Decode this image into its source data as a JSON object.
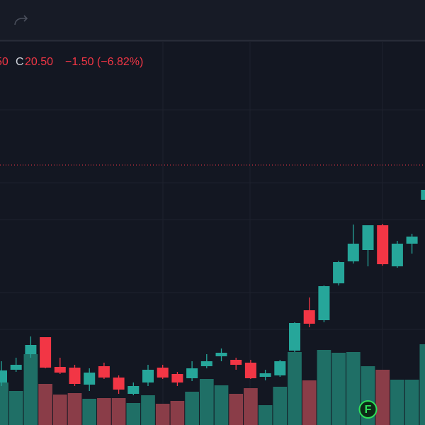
{
  "chart_data": {
    "type": "candlestick",
    "legend": {
      "partial": "50",
      "close_label": "C",
      "close": "20.50",
      "change": "−1.50 (−6.82%)"
    },
    "up_color": "#26a69a",
    "down_color": "#f23645",
    "volume_up_color": "#1f6f66",
    "volume_down_color": "#8a3d48",
    "price_line": 367,
    "price_line_color": "#f23645",
    "ylim": [
      0,
      600
    ],
    "volume_ylim": [
      0,
      600
    ],
    "open": [
      60,
      78,
      100,
      124,
      82,
      81,
      57,
      83,
      67,
      44,
      60,
      81,
      72,
      66,
      83,
      97,
      92,
      88,
      68,
      70,
      105,
      162,
      148,
      200,
      231,
      247,
      282,
      224,
      256,
      318
    ],
    "high": [
      90,
      95,
      125,
      124,
      95,
      85,
      80,
      88,
      70,
      60,
      85,
      85,
      75,
      90,
      100,
      108,
      95,
      92,
      78,
      92,
      145,
      180,
      197,
      232,
      283,
      282,
      284,
      260,
      270,
      335
    ],
    "low": [
      55,
      75,
      95,
      80,
      72,
      55,
      48,
      65,
      44,
      42,
      55,
      65,
      55,
      62,
      80,
      90,
      78,
      65,
      63,
      68,
      103,
      138,
      145,
      197,
      228,
      224,
      225,
      222,
      242,
      315
    ],
    "close": [
      77,
      85,
      113,
      81,
      74,
      58,
      74,
      67,
      50,
      55,
      78,
      67,
      60,
      80,
      90,
      102,
      85,
      66,
      73,
      90,
      144,
      143,
      196,
      230,
      256,
      282,
      227,
      256,
      266,
      332
    ],
    "volume": [
      60,
      48,
      100,
      58,
      43,
      45,
      37,
      38,
      38,
      31,
      42,
      30,
      34,
      47,
      65,
      56,
      44,
      52,
      28,
      54,
      103,
      63,
      106,
      102,
      103,
      83,
      78,
      64,
      64,
      114
    ],
    "marker": {
      "label": "F",
      "index": 25
    }
  }
}
